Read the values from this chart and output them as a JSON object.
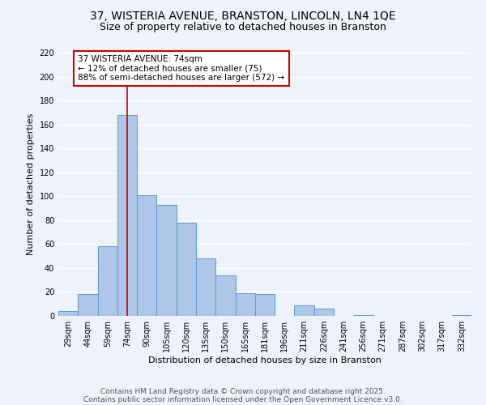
{
  "title": "37, WISTERIA AVENUE, BRANSTON, LINCOLN, LN4 1QE",
  "subtitle": "Size of property relative to detached houses in Branston",
  "xlabel": "Distribution of detached houses by size in Branston",
  "ylabel": "Number of detached properties",
  "bin_labels": [
    "29sqm",
    "44sqm",
    "59sqm",
    "74sqm",
    "90sqm",
    "105sqm",
    "120sqm",
    "135sqm",
    "150sqm",
    "165sqm",
    "181sqm",
    "196sqm",
    "211sqm",
    "226sqm",
    "241sqm",
    "256sqm",
    "271sqm",
    "287sqm",
    "302sqm",
    "317sqm",
    "332sqm"
  ],
  "bar_heights": [
    4,
    18,
    58,
    168,
    101,
    93,
    78,
    48,
    34,
    19,
    18,
    0,
    9,
    6,
    0,
    1,
    0,
    0,
    0,
    0,
    1
  ],
  "bar_color": "#aec6e8",
  "bar_edge_color": "#5b9bd5",
  "vline_x": 3,
  "vline_color": "#cc0000",
  "annotation_line1": "37 WISTERIA AVENUE: 74sqm",
  "annotation_line2": "← 12% of detached houses are smaller (75)",
  "annotation_line3": "88% of semi-detached houses are larger (572) →",
  "annotation_box_color": "#ffffff",
  "annotation_box_edge_color": "#cc0000",
  "ylim": [
    0,
    220
  ],
  "yticks": [
    0,
    20,
    40,
    60,
    80,
    100,
    120,
    140,
    160,
    180,
    200,
    220
  ],
  "footer_line1": "Contains HM Land Registry data © Crown copyright and database right 2025.",
  "footer_line2": "Contains public sector information licensed under the Open Government Licence v3.0.",
  "bg_color": "#eef2fa",
  "grid_color": "#ffffff",
  "title_fontsize": 10,
  "subtitle_fontsize": 9,
  "axis_label_fontsize": 8,
  "tick_fontsize": 7,
  "annotation_fontsize": 7.5,
  "footer_fontsize": 6.5
}
